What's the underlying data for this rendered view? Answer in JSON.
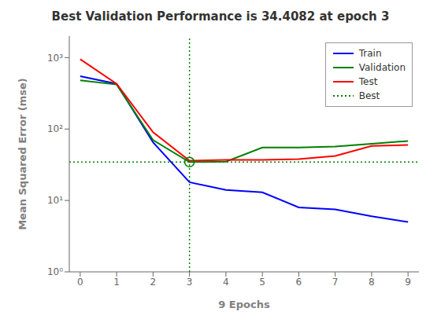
{
  "chart_data": {
    "type": "line",
    "title": "Best Validation Performance is 34.4082 at epoch 3",
    "x_label": "9 Epochs",
    "y_label": "Mean Squared Error  (mse)",
    "x": [
      0,
      1,
      2,
      3,
      4,
      5,
      6,
      7,
      8,
      9
    ],
    "series": [
      {
        "name": "Train",
        "color": "#0000FF",
        "values": [
          550,
          430,
          65,
          18,
          14,
          13,
          8,
          7.5,
          6,
          5
        ]
      },
      {
        "name": "Validation",
        "color": "#008000",
        "values": [
          480,
          420,
          70,
          34.4082,
          35,
          55,
          55,
          57,
          62,
          68
        ]
      },
      {
        "name": "Test",
        "color": "#FF0000",
        "values": [
          950,
          430,
          90,
          36,
          37,
          37,
          38,
          42,
          58,
          60
        ]
      }
    ],
    "reference_lines": [
      {
        "name": "Best",
        "y": 34.4082,
        "color": "#008000",
        "line_style": "dotted"
      },
      {
        "x": 3,
        "color": "#008000",
        "line_style": "dotted"
      }
    ],
    "markers": [
      {
        "x": 3,
        "y": 34.4082,
        "color": "#008000",
        "marker": "circle"
      }
    ],
    "log": "y",
    "xlim": [
      -0.3,
      9.3
    ],
    "xticks": [
      0,
      1,
      2,
      3,
      4,
      5,
      6,
      7,
      8,
      9
    ],
    "ylim": [
      1,
      2000
    ],
    "yticks": [
      {
        "value": 1,
        "label": "10⁰"
      },
      {
        "value": 10,
        "label": "10¹"
      },
      {
        "value": 100,
        "label": "10²"
      },
      {
        "value": 1000,
        "label": "10³"
      }
    ],
    "grid": false,
    "legend": "upper right"
  }
}
